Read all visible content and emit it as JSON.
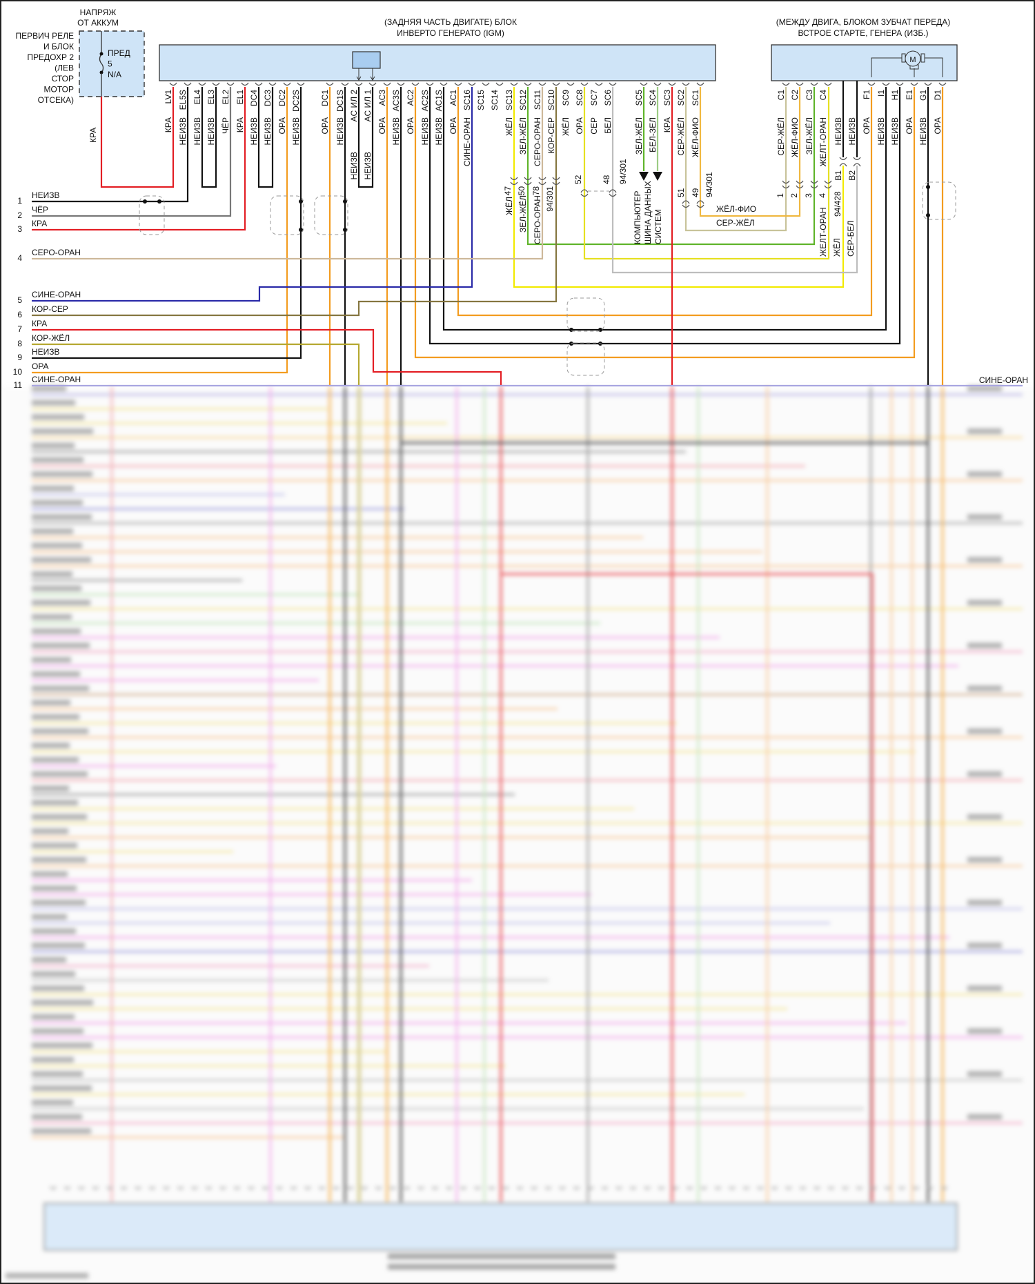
{
  "battery": {
    "line1": "НАПРЯЖ",
    "line2": "ОТ АККУМ"
  },
  "fuse_block": {
    "label_lines": [
      "ПЕРВИЧ РЕЛЕ",
      "И БЛОК",
      "ПРЕДОХР 2",
      "(ЛЕВ",
      "СТОР",
      "МОТОР",
      "ОТСЕКА)"
    ],
    "fuse_lines": [
      "ПРЕД",
      "5",
      "N/A"
    ],
    "wire": "КРА"
  },
  "igm": {
    "title_line1": "(ЗАДНЯЯ ЧАСТЬ ДВИГАТЕ) БЛОК",
    "title_line2": "ИНВЕРТО ГЕНЕРАТО (IGM)",
    "pins": [
      {
        "pin": "LV1",
        "wire": "КРА",
        "color": "#e31e24"
      },
      {
        "pin": "EL5S",
        "wire": "НЕИЗВ",
        "color": "#111111"
      },
      {
        "pin": "EL4",
        "wire": "НЕИЗВ",
        "color": "#111111"
      },
      {
        "pin": "EL3",
        "wire": "НЕИЗВ",
        "color": "#111111"
      },
      {
        "pin": "EL2",
        "wire": "ЧЁР",
        "color": "#777777"
      },
      {
        "pin": "EL1",
        "wire": "КРА",
        "color": "#e31e24"
      },
      {
        "pin": "DC4",
        "wire": "НЕИЗВ",
        "color": "#111111"
      },
      {
        "pin": "DC3",
        "wire": "НЕИЗВ",
        "color": "#111111"
      },
      {
        "pin": "DC2",
        "wire": "ОРА",
        "color": "#f39c1f"
      },
      {
        "pin": "DC2S",
        "wire": "НЕИЗВ",
        "color": "#111111"
      },
      {
        "pin": "DC1",
        "wire": "ОРА",
        "color": "#f39c1f"
      },
      {
        "pin": "DC1S",
        "wire": "НЕИЗВ",
        "color": "#111111"
      },
      {
        "pin": "AC ИЛ 2",
        "wire": "НЕИЗВ",
        "color": "#111111"
      },
      {
        "pin": "AC ИЛ 1",
        "wire": "НЕИЗВ",
        "color": "#111111"
      },
      {
        "pin": "AC3",
        "wire": "ОРА",
        "color": "#f39c1f"
      },
      {
        "pin": "AC3S",
        "wire": "НЕИЗВ",
        "color": "#111111"
      },
      {
        "pin": "AC2",
        "wire": "ОРА",
        "color": "#f39c1f"
      },
      {
        "pin": "AC2S",
        "wire": "НЕИЗВ",
        "color": "#111111"
      },
      {
        "pin": "AC1S",
        "wire": "НЕИЗВ",
        "color": "#111111"
      },
      {
        "pin": "AC1",
        "wire": "ОРА",
        "color": "#f39c1f"
      },
      {
        "pin": "SC16",
        "wire": "СИНЕ-ОРАН",
        "color": "#2a2aa8"
      },
      {
        "pin": "SC15",
        "wire": "",
        "color": ""
      },
      {
        "pin": "SC14",
        "wire": "",
        "color": ""
      },
      {
        "pin": "SC13",
        "wire": "ЖЁЛ",
        "color": "#f2ea00"
      },
      {
        "pin": "SC12",
        "wire": "ЗЕЛ-ЖЁЛ",
        "color": "#5fb42a"
      },
      {
        "pin": "SC11",
        "wire": "СЕРО-ОРАН",
        "color": "#cdb89a"
      },
      {
        "pin": "SC10",
        "wire": "КОР-СЕР",
        "color": "#857640"
      },
      {
        "pin": "SC9",
        "wire": "ЖЁЛ",
        "color": ""
      },
      {
        "pin": "SC8",
        "wire": "ОРА",
        "color": "#e6e020"
      },
      {
        "pin": "SC7",
        "wire": "СЕР",
        "color": ""
      },
      {
        "pin": "SC6",
        "wire": "БЕЛ",
        "color": "#bdbdbd"
      },
      {
        "pin": "SC5",
        "wire": "ЗЕЛ-ЖЁЛ",
        "color": "#5fb42a"
      },
      {
        "pin": "SC4",
        "wire": "БЕЛ-ЗЕЛ",
        "color": "#9ccc84"
      },
      {
        "pin": "SC3",
        "wire": "КРА",
        "color": "#e31e24"
      },
      {
        "pin": "SC2",
        "wire": "СЕР-ЖЁЛ",
        "color": "#c8c39a"
      },
      {
        "pin": "SC1",
        "wire": "ЖЁЛ-ФИО",
        "color": "#f0b840"
      }
    ],
    "inline_connectors": [
      "47",
      "50",
      "78",
      "94/301",
      "52",
      "48",
      "94/301",
      "51",
      "49",
      "94/301"
    ],
    "mid_wires": {
      "sc13": "ЖЁЛ",
      "sc12": "ЗЕЛ-ЖЁЛ",
      "sc11": "СЕРО-ОРАН",
      "sc1": "ЖЁЛ-ФИО",
      "sc2": "СЕР-ЖЁЛ"
    },
    "bus_label": [
      "КОМПЬЮТЕР",
      "ШИНА ДАННЫХ",
      "СИСТЕМ"
    ]
  },
  "starter": {
    "title_line1": "(МЕЖДУ ДВИГА, БЛОКОМ ЗУБЧАТ ПЕРЕДА)",
    "title_line2": "ВСТРОЕ СТАРТЕ, ГЕНЕРА (ИЗБ.)",
    "motor_label": "M",
    "pins": [
      {
        "pin": "C1",
        "wire": "СЕР-ЖЁЛ",
        "color": "#c8c39a"
      },
      {
        "pin": "C2",
        "wire": "ЖЁЛ-ФИО",
        "color": "#f0b840"
      },
      {
        "pin": "C3",
        "wire": "ЗЕЛ-ЖЁЛ",
        "color": "#5fb42a"
      },
      {
        "pin": "C4",
        "wire": "ЖЕЛТ-ОРАН",
        "color": "#e6e020"
      },
      {
        "pin": "",
        "wire": "НЕИЗВ",
        "color": "#111111"
      },
      {
        "pin": "",
        "wire": "НЕИЗВ",
        "color": "#111111"
      },
      {
        "pin": "F1",
        "wire": "ОРА",
        "color": "#f39c1f"
      },
      {
        "pin": "I1",
        "wire": "НЕИЗВ",
        "color": "#111111"
      },
      {
        "pin": "H1",
        "wire": "НЕИЗВ",
        "color": "#111111"
      },
      {
        "pin": "E1",
        "wire": "ОРА",
        "color": "#f39c1f"
      },
      {
        "pin": "G1",
        "wire": "НЕИЗВ",
        "color": "#111111"
      },
      {
        "pin": "D1",
        "wire": "ОРА",
        "color": "#f39c1f"
      }
    ],
    "connector_numbers": [
      "1",
      "2",
      "3",
      "4",
      "94/428",
      "B1",
      "B2"
    ],
    "lower_wires": [
      "ЖЕЛТ-ОРАН",
      "ЖЁЛ",
      "СЕР-БЕЛ"
    ]
  },
  "rows": [
    {
      "num": "1",
      "label": "НЕИЗВ",
      "color": "#111111"
    },
    {
      "num": "2",
      "label": "ЧЁР",
      "color": "#777777"
    },
    {
      "num": "3",
      "label": "КРА",
      "color": "#e31e24"
    },
    {
      "num": "4",
      "label": "СЕРО-ОРАН",
      "color": "#d2b89a"
    },
    {
      "num": "5",
      "label": "СИНЕ-ОРАН",
      "color": "#2a2aa8"
    },
    {
      "num": "6",
      "label": "КОР-СЕР",
      "color": "#857640"
    },
    {
      "num": "7",
      "label": "КРА",
      "color": "#e31e24"
    },
    {
      "num": "8",
      "label": "КОР-ЖЁЛ",
      "color": "#b5a830"
    },
    {
      "num": "9",
      "label": "НЕИЗВ",
      "color": "#111111"
    },
    {
      "num": "10",
      "label": "ОРА",
      "color": "#f39c1f"
    },
    {
      "num": "11",
      "label": "СИНЕ-ОРАН",
      "color": "#a9a6e0"
    }
  ],
  "right_row_label": "СИНЕ-ОРАН",
  "colors": {
    "module_fill": "#cfe4f7",
    "module_stroke": "#333333"
  }
}
